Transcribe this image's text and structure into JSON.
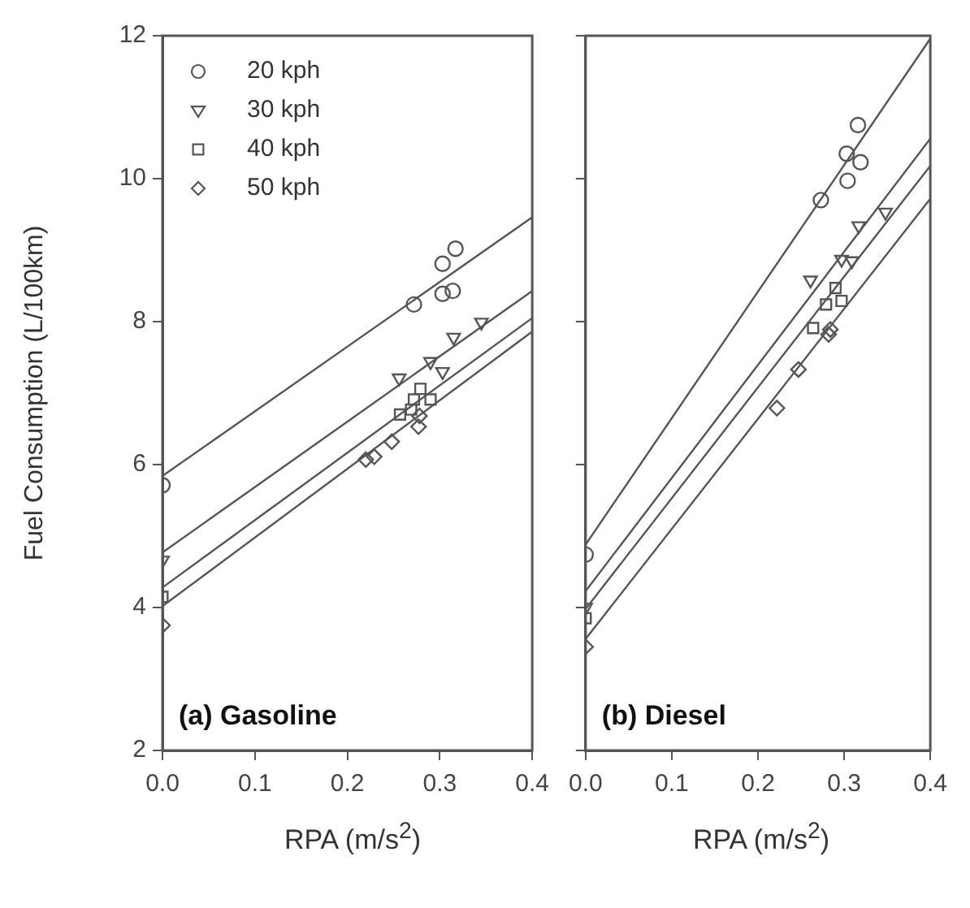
{
  "chart_data": [
    {
      "type": "scatter",
      "ylabel": "Fuel Consumption (L/100km)",
      "xlabel": "RPA (m/s$^{2}$)",
      "annotations": [
        "(a) Gasoline"
      ],
      "xlim": [
        0,
        0.4
      ],
      "xticks": [
        {
          "value": 0,
          "label": "0.0"
        },
        {
          "value": 0.1,
          "label": "0.1"
        },
        {
          "value": 0.2,
          "label": "0.2"
        },
        {
          "value": 0.3,
          "label": "0.3"
        },
        {
          "value": 0.4,
          "label": "0.4"
        }
      ],
      "ylim": [
        2,
        12
      ],
      "yticks": [
        2,
        4,
        6,
        8,
        10,
        12
      ],
      "grid": false,
      "legend": "top left",
      "series": [
        {
          "name": "20 kph",
          "color": "#555555",
          "marker": "circle",
          "x": [
            0,
            0.272,
            0.303,
            0.317,
            0.303,
            0.314
          ],
          "values": [
            5.71,
            8.24,
            8.81,
            9.02,
            8.39,
            8.43
          ]
        },
        {
          "name": "30 kph",
          "color": "#555555",
          "marker": "triangle",
          "x": [
            0,
            0.256,
            0.29,
            0.303,
            0.315,
            0.345
          ],
          "values": [
            4.66,
            7.21,
            7.44,
            7.3,
            7.78,
            7.99
          ]
        },
        {
          "name": "40 kph",
          "color": "#555555",
          "marker": "square",
          "x": [
            0,
            0.257,
            0.269,
            0.272,
            0.279,
            0.29
          ],
          "values": [
            4.15,
            6.7,
            6.77,
            6.91,
            7.06,
            6.91
          ]
        },
        {
          "name": "50 kph",
          "color": "#555555",
          "marker": "diamond",
          "x": [
            0,
            0.22,
            0.229,
            0.248,
            0.277,
            0.278
          ],
          "values": [
            3.75,
            6.07,
            6.11,
            6.32,
            6.53,
            6.68
          ]
        },
        {
          "type": "line",
          "color": "#555555",
          "marker": "none",
          "x": [
            0,
            0.4
          ],
          "values": [
            5.84,
            9.46
          ]
        },
        {
          "type": "line",
          "color": "#555555",
          "marker": "none",
          "x": [
            0,
            0.4
          ],
          "values": [
            4.77,
            8.43
          ]
        },
        {
          "type": "line",
          "color": "#555555",
          "marker": "none",
          "x": [
            0,
            0.4
          ],
          "values": [
            4.28,
            8.05
          ]
        },
        {
          "type": "line",
          "color": "#555555",
          "marker": "none",
          "x": [
            0,
            0.4
          ],
          "values": [
            4.02,
            7.86
          ]
        }
      ]
    },
    {
      "type": "scatter",
      "xlabel": "RPA (m/s$^{2}$)",
      "annotations": [
        "(b) Diesel"
      ],
      "xlim": [
        0,
        0.4
      ],
      "xticks": [
        {
          "value": 0,
          "label": "0.0"
        },
        {
          "value": 0.1,
          "label": "0.1"
        },
        {
          "value": 0.2,
          "label": "0.2"
        },
        {
          "value": 0.3,
          "label": "0.3"
        },
        {
          "value": 0.4,
          "label": "0.4"
        }
      ],
      "ylim": [
        2,
        12
      ],
      "yticks": [
        2,
        4,
        6,
        8,
        10,
        12
      ],
      "tick_labels": "x",
      "grid": false,
      "series": [
        {
          "color": "#555555",
          "marker": "circle",
          "x": [
            0,
            0.273,
            0.304,
            0.303,
            0.319,
            0.316
          ],
          "values": [
            4.74,
            9.7,
            9.97,
            10.35,
            10.23,
            10.75
          ]
        },
        {
          "color": "#555555",
          "marker": "triangle",
          "x": [
            0,
            0.261,
            0.297,
            0.309,
            0.317,
            0.348
          ],
          "values": [
            4.0,
            8.58,
            8.87,
            8.85,
            9.34,
            9.53
          ]
        },
        {
          "color": "#555555",
          "marker": "square",
          "x": [
            0,
            0.264,
            0.279,
            0.29,
            0.297
          ],
          "values": [
            3.85,
            7.91,
            8.24,
            8.47,
            8.29
          ]
        },
        {
          "color": "#555555",
          "marker": "diamond",
          "x": [
            0,
            0.222,
            0.247,
            0.282,
            0.284
          ],
          "values": [
            3.45,
            6.79,
            7.33,
            7.82,
            7.89
          ]
        },
        {
          "type": "line",
          "color": "#555555",
          "marker": "none",
          "x": [
            0,
            0.4
          ],
          "values": [
            4.88,
            11.96
          ]
        },
        {
          "type": "line",
          "color": "#555555",
          "marker": "none",
          "x": [
            0,
            0.4
          ],
          "values": [
            4.23,
            10.56
          ]
        },
        {
          "type": "line",
          "color": "#555555",
          "marker": "none",
          "x": [
            0,
            0.4
          ],
          "values": [
            3.98,
            10.18
          ]
        },
        {
          "type": "line",
          "color": "#555555",
          "marker": "none",
          "x": [
            0,
            0.4
          ],
          "values": [
            3.56,
            9.72
          ]
        }
      ]
    }
  ]
}
